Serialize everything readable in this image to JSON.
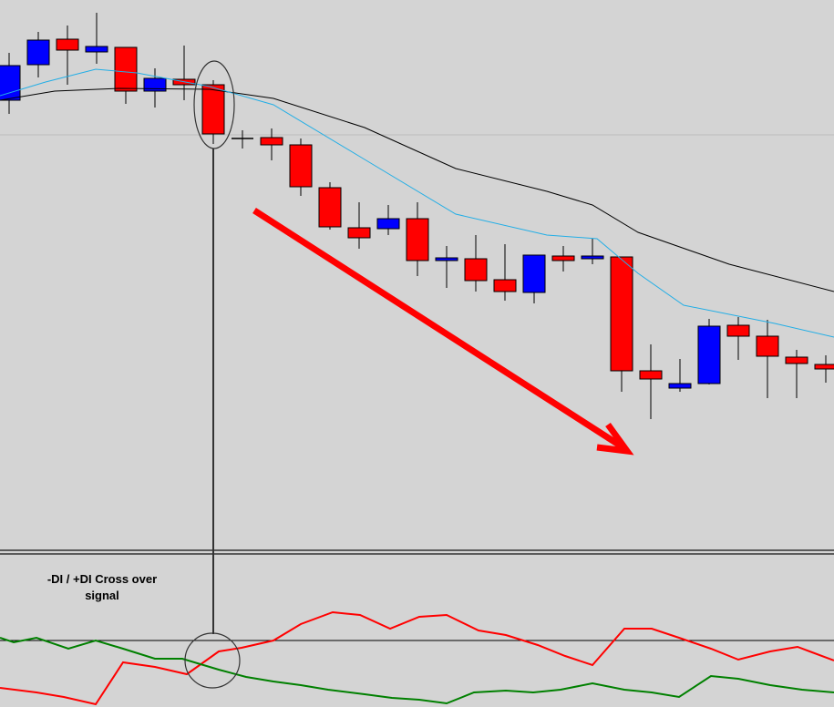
{
  "annotation": {
    "lines": [
      "-DI / +DI Cross over",
      "signal"
    ]
  }
}
